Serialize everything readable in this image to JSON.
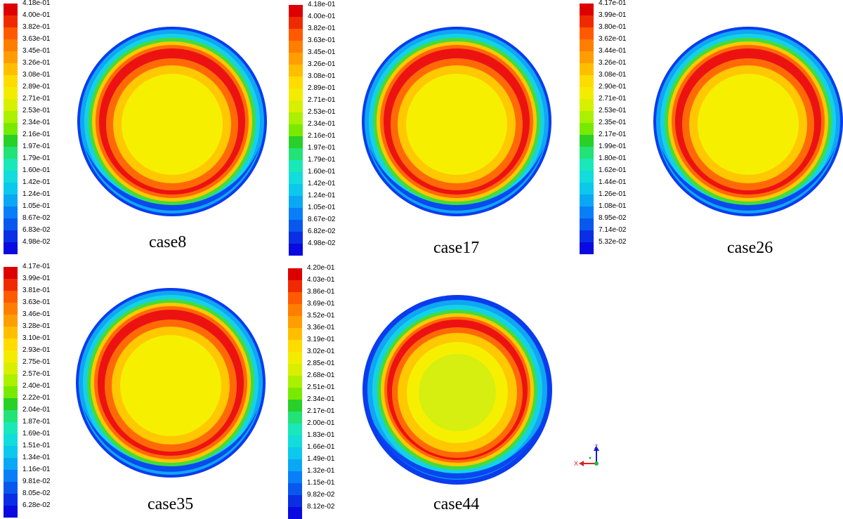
{
  "colors": [
    "#dd0000",
    "#f02a00",
    "#ff5a00",
    "#ff7e00",
    "#ff9e00",
    "#ffbe00",
    "#ffdc00",
    "#f4ec00",
    "#d8f000",
    "#aaf000",
    "#78ea00",
    "#28d028",
    "#22e278",
    "#1ae8b8",
    "#12dcdc",
    "#0cc8ec",
    "#0aa8f4",
    "#087ff8",
    "#0858ee",
    "#0a2ee4",
    "#0a0ae0"
  ],
  "disk_colors": {
    "core": "#f6f000",
    "core44": "#d6ee10",
    "ring_red": "#ec1212",
    "ring_orange": "#ff6a06",
    "ring_yellow": "#ffc800",
    "green": "#44dc3a",
    "cyan": "#14d2e6",
    "sky": "#10a6f4",
    "blue": "#0a3cee"
  },
  "panels": [
    {
      "name": "case8",
      "label": "case8",
      "ticks": [
        "4.18e-01",
        "4.00e-01",
        "3.82e-01",
        "3.63e-01",
        "3.45e-01",
        "3.26e-01",
        "3.08e-01",
        "2.89e-01",
        "2.71e-01",
        "2.53e-01",
        "2.34e-01",
        "2.16e-01",
        "1.97e-01",
        "1.79e-01",
        "1.60e-01",
        "1.42e-01",
        "1.24e-01",
        "1.05e-01",
        "8.67e-02",
        "6.83e-02",
        "4.98e-02"
      ]
    },
    {
      "name": "case17",
      "label": "case17",
      "ticks": [
        "4.18e-01",
        "4.00e-01",
        "3.82e-01",
        "3.63e-01",
        "3.45e-01",
        "3.26e-01",
        "3.08e-01",
        "2.89e-01",
        "2.71e-01",
        "2.53e-01",
        "2.34e-01",
        "2.16e-01",
        "1.97e-01",
        "1.79e-01",
        "1.60e-01",
        "1.42e-01",
        "1.24e-01",
        "1.05e-01",
        "8.67e-02",
        "6.82e-02",
        "4.98e-02"
      ]
    },
    {
      "name": "case26",
      "label": "case26",
      "ticks": [
        "4.17e-01",
        "3.99e-01",
        "3.80e-01",
        "3.62e-01",
        "3.44e-01",
        "3.26e-01",
        "3.08e-01",
        "2.90e-01",
        "2.71e-01",
        "2.53e-01",
        "2.35e-01",
        "2.17e-01",
        "1.99e-01",
        "1.80e-01",
        "1.62e-01",
        "1.44e-01",
        "1.26e-01",
        "1.08e-01",
        "8.95e-02",
        "7.14e-02",
        "5.32e-02"
      ]
    },
    {
      "name": "case35",
      "label": "case35",
      "ticks": [
        "4.17e-01",
        "3.99e-01",
        "3.81e-01",
        "3.63e-01",
        "3.46e-01",
        "3.28e-01",
        "3.10e-01",
        "2.93e-01",
        "2.75e-01",
        "2.57e-01",
        "2.40e-01",
        "2.22e-01",
        "2.04e-01",
        "1.87e-01",
        "1.69e-01",
        "1.51e-01",
        "1.34e-01",
        "1.16e-01",
        "9.81e-02",
        "8.05e-02",
        "6.28e-02"
      ]
    },
    {
      "name": "case44",
      "label": "case44",
      "ticks": [
        "4.20e-01",
        "4.03e-01",
        "3.86e-01",
        "3.69e-01",
        "3.52e-01",
        "3.36e-01",
        "3.19e-01",
        "3.02e-01",
        "2.85e-01",
        "2.68e-01",
        "2.51e-01",
        "2.34e-01",
        "2.17e-01",
        "2.00e-01",
        "1.83e-01",
        "1.66e-01",
        "1.49e-01",
        "1.32e-01",
        "1.15e-01",
        "9.82e-02",
        "8.12e-02"
      ]
    }
  ],
  "axes": {
    "x": "X",
    "z": "Z"
  }
}
